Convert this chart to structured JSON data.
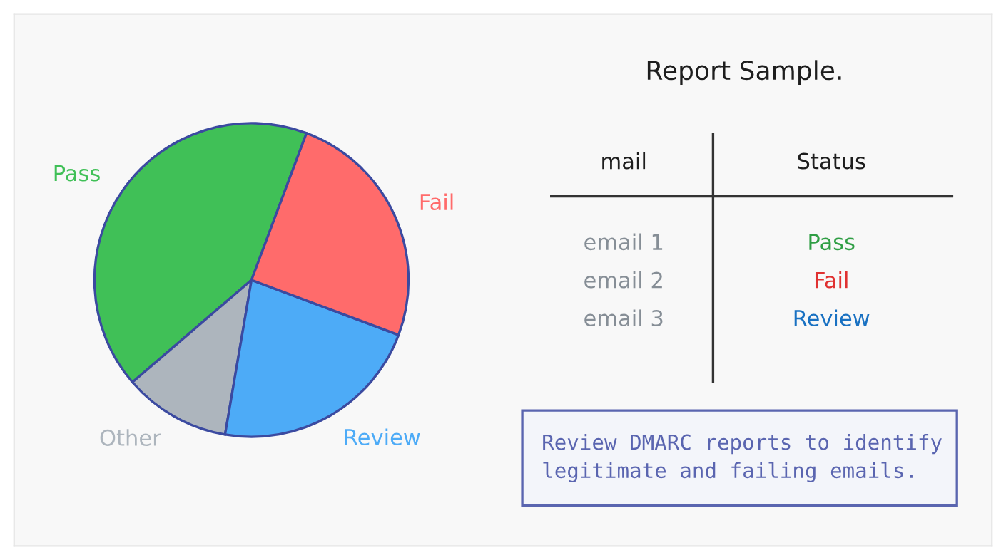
{
  "chart_data": [
    {
      "type": "pie",
      "categories": [
        "Pass",
        "Other",
        "Review",
        "Fail"
      ],
      "values": [
        42,
        11,
        22,
        25
      ],
      "colors": [
        "#40c057",
        "#adb5bd",
        "#4dabf7",
        "#ff6b6b"
      ]
    },
    {
      "type": "other",
      "title": "Report Sample.",
      "annotations": [
        "mail",
        "Status",
        "email 1",
        "Pass",
        "email 2",
        "Fail",
        "email 3",
        "Review",
        "Review DMARC reports to identify\nlegitimate and failing emails."
      ],
      "colors": [
        "#2f9e44",
        "#e03131",
        "#1971c2"
      ]
    }
  ]
}
